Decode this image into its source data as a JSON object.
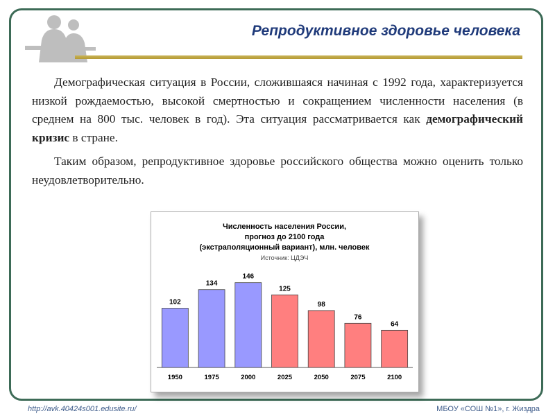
{
  "header": {
    "title": "Репродуктивное здоровье человека"
  },
  "body": {
    "paragraph1_before": "Демографическая ситуация в России, сложившаяся начиная с 1992 года, характеризуется низкой рождаемостью, высокой смертностью и сокращением численности населения (в среднем на 800 тыс. человек в год). Эта ситуация рассматривается как ",
    "paragraph1_bold": "демографический кризис",
    "paragraph1_after": " в стране.",
    "paragraph2": "Таким образом, репродуктивное здоровье российского общества можно оценить только неудовлетворительно."
  },
  "chart_data": {
    "type": "bar",
    "title": "Численность населения России,",
    "title_line2": "прогноз до 2100 года",
    "title_line3": "(экстраполяционный вариант), млн. человек",
    "source": "Источник: ЦДЭЧ",
    "categories": [
      "1950",
      "1975",
      "2000",
      "2025",
      "2050",
      "2075",
      "2100"
    ],
    "values": [
      102,
      134,
      146,
      125,
      98,
      76,
      64
    ],
    "colors": [
      "#9999ff",
      "#9999ff",
      "#9999ff",
      "#ff7f7f",
      "#ff7f7f",
      "#ff7f7f",
      "#ff7f7f"
    ],
    "ylim": [
      0,
      160
    ],
    "legend": "none",
    "grid": false
  },
  "footer": {
    "url": "http://avk.40424s001.edusite.ru/",
    "school": "МБОУ «СОШ №1», г. Жиздра"
  }
}
